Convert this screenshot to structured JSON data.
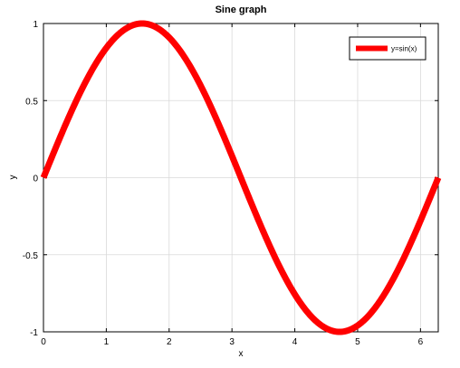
{
  "chart_data": {
    "type": "line",
    "title": "Sine graph",
    "xlabel": "x",
    "ylabel": "y",
    "xlim": [
      0,
      6.2832
    ],
    "ylim": [
      -1,
      1
    ],
    "xticks": [
      0,
      1,
      2,
      3,
      4,
      5,
      6
    ],
    "xtick_labels": [
      "0",
      "1",
      "2",
      "3",
      "4",
      "5",
      "6"
    ],
    "yticks": [
      -1,
      -0.5,
      0,
      0.5,
      1
    ],
    "ytick_labels": [
      "-1",
      "-0.5",
      "0",
      "0.5",
      "1"
    ],
    "grid": true,
    "legend_position": "top-right",
    "series": [
      {
        "name": "y=sin(x)",
        "color": "#ff0000",
        "function": "sin",
        "x_start": 0,
        "x_end": 6.2832
      }
    ]
  }
}
